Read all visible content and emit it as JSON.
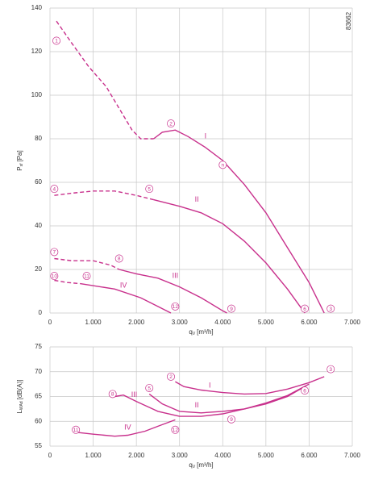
{
  "chart_data": [
    {
      "type": "line",
      "reference": "83662",
      "x_label": {
        "main": "q",
        "sub": "V",
        "unit": "[m³/h]"
      },
      "y_label": {
        "main": "P",
        "sub": "sf",
        "unit": "[Pa]"
      },
      "xlim": [
        0,
        7000
      ],
      "ylim": [
        0,
        140
      ],
      "xticks": [
        0,
        {
          "value": 1000,
          "label": "1.000"
        },
        {
          "value": 2000,
          "label": "2.000"
        },
        {
          "value": 3000,
          "label": "3.000"
        },
        {
          "value": 4000,
          "label": "4.000"
        },
        {
          "value": 5000,
          "label": "5.000"
        },
        {
          "value": 6000,
          "label": "6.000"
        },
        {
          "value": 7000,
          "label": "7.000"
        }
      ],
      "yticks": [
        0,
        20,
        40,
        60,
        80,
        100,
        120,
        140
      ],
      "grid": true,
      "series": [
        {
          "color": "#c8308c",
          "line_style": "dashed",
          "x": [
            150,
            500,
            900,
            1300,
            1600,
            1900,
            2100,
            2400
          ],
          "values": [
            134,
            124,
            113,
            104,
            94,
            84,
            80,
            80
          ]
        },
        {
          "name": "I",
          "name_x": 3600,
          "name_y": 81,
          "color": "#c8308c",
          "line_style": "solid",
          "x": [
            2400,
            2600,
            2900,
            3200,
            3600,
            4000,
            4500,
            5000,
            5500,
            6000,
            6350
          ],
          "values": [
            80,
            83,
            84,
            81,
            76,
            70,
            59,
            46,
            30,
            14,
            0
          ]
        },
        {
          "color": "#c8308c",
          "line_style": "dashed",
          "x": [
            100,
            500,
            1000,
            1500,
            2000,
            2400
          ],
          "values": [
            54,
            55,
            56,
            56,
            54,
            52
          ]
        },
        {
          "name": "II",
          "name_x": 3400,
          "name_y": 52,
          "color": "#c8308c",
          "line_style": "solid",
          "x": [
            2400,
            3000,
            3500,
            4000,
            4500,
            5000,
            5500,
            5900
          ],
          "values": [
            52,
            49,
            46,
            41,
            33,
            23,
            11,
            0
          ]
        },
        {
          "color": "#c8308c",
          "line_style": "dashed",
          "x": [
            100,
            500,
            1000,
            1400,
            1600
          ],
          "values": [
            25,
            24,
            24,
            22,
            20
          ]
        },
        {
          "name": "III",
          "name_x": 2900,
          "name_y": 17,
          "color": "#c8308c",
          "line_style": "solid",
          "x": [
            1600,
            2000,
            2500,
            3000,
            3500,
            4000,
            4100
          ],
          "values": [
            20,
            18,
            16,
            12,
            7,
            1,
            0
          ]
        },
        {
          "color": "#c8308c",
          "line_style": "dashed",
          "x": [
            100,
            400,
            700
          ],
          "values": [
            15,
            14,
            13.5
          ]
        },
        {
          "name": "IV",
          "name_x": 1700,
          "name_y": 12.5,
          "color": "#c8308c",
          "line_style": "solid",
          "x": [
            700,
            1500,
            2100,
            2500,
            2800
          ],
          "values": [
            13.5,
            11,
            7,
            3,
            0
          ]
        }
      ],
      "annotations": [
        {
          "label": "1",
          "x": 150,
          "y": 125
        },
        {
          "label": "2",
          "x": 2800,
          "y": 87
        },
        {
          "label": "3",
          "x": 6500,
          "y": 2
        },
        {
          "label": "4",
          "x": 100,
          "y": 57
        },
        {
          "label": "5",
          "x": 2300,
          "y": 57
        },
        {
          "label": "6",
          "x": 5900,
          "y": 2
        },
        {
          "label": "7",
          "x": 100,
          "y": 28
        },
        {
          "label": "8",
          "x": 1600,
          "y": 25
        },
        {
          "label": "9",
          "x": 4200,
          "y": 2
        },
        {
          "label": "10",
          "x": 100,
          "y": 17
        },
        {
          "label": "11",
          "x": 850,
          "y": 17
        },
        {
          "label": "12",
          "x": 2900,
          "y": 3
        },
        {
          "label": "n",
          "x": 4000,
          "y": 68
        }
      ]
    },
    {
      "type": "line",
      "x_label": {
        "main": "q",
        "sub": "V",
        "unit": "[m³/h]"
      },
      "y_label": {
        "main": "L",
        "sub": "WAd",
        "unit": "[dB(A)]"
      },
      "xlim": [
        0,
        7000
      ],
      "ylim": [
        55,
        75
      ],
      "xticks": [
        0,
        {
          "value": 1000,
          "label": "1.000"
        },
        {
          "value": 2000,
          "label": "2.000"
        },
        {
          "value": 3000,
          "label": "3.000"
        },
        {
          "value": 4000,
          "label": "4.000"
        },
        {
          "value": 5000,
          "label": "5.000"
        },
        {
          "value": 6000,
          "label": "6.000"
        },
        {
          "value": 7000,
          "label": "7.000"
        }
      ],
      "yticks": [
        55,
        60,
        65,
        70,
        75
      ],
      "grid": true,
      "series": [
        {
          "name": "I",
          "name_x": 3700,
          "name_y": 67.2,
          "color": "#c8308c",
          "line_style": "solid",
          "x": [
            2900,
            3100,
            3500,
            4000,
            4500,
            5000,
            5500,
            6000,
            6350
          ],
          "values": [
            68,
            67,
            66.3,
            65.8,
            65.5,
            65.6,
            66.5,
            67.8,
            69
          ]
        },
        {
          "name": "II",
          "name_x": 3400,
          "name_y": 63.2,
          "color": "#c8308c",
          "line_style": "solid",
          "x": [
            2300,
            2600,
            3000,
            3500,
            4000,
            4500,
            5000,
            5500,
            5900
          ],
          "values": [
            65.5,
            63.5,
            62,
            61.7,
            62,
            62.5,
            63.5,
            65,
            67
          ]
        },
        {
          "name": "III",
          "name_x": 1950,
          "name_y": 65.3,
          "color": "#c8308c",
          "line_style": "solid",
          "x": [
            1500,
            1700,
            2000,
            2500,
            3000,
            3500,
            4000,
            4500,
            5000,
            5500,
            6000
          ],
          "values": [
            65,
            65.3,
            64,
            62,
            61,
            61,
            61.5,
            62.5,
            63.7,
            65.2,
            67.5
          ]
        },
        {
          "name": "IV",
          "name_x": 1800,
          "name_y": 58.7,
          "color": "#c8308c",
          "line_style": "solid",
          "x": [
            600,
            1000,
            1500,
            1800,
            2200,
            2500,
            2900
          ],
          "values": [
            57.8,
            57.4,
            57,
            57.2,
            58,
            59,
            60.3
          ]
        }
      ],
      "annotations": [
        {
          "label": "3",
          "x": 6500,
          "y": 70.5
        },
        {
          "label": "2",
          "x": 2800,
          "y": 69
        },
        {
          "label": "6",
          "x": 5900,
          "y": 66.2
        },
        {
          "label": "5",
          "x": 2300,
          "y": 66.7
        },
        {
          "label": "8",
          "x": 1450,
          "y": 65.5
        },
        {
          "label": "9",
          "x": 4200,
          "y": 60.4
        },
        {
          "label": "11",
          "x": 600,
          "y": 58.3
        },
        {
          "label": "12",
          "x": 2900,
          "y": 58.3
        }
      ]
    }
  ]
}
